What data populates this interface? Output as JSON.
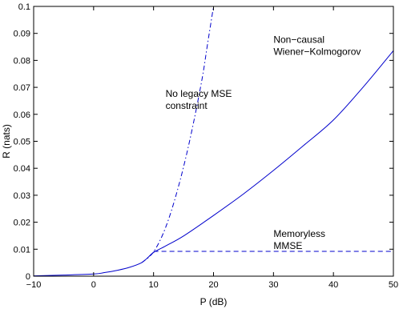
{
  "chart_data": {
    "type": "line",
    "title": "",
    "xlabel": "P (dB)",
    "ylabel": "R (nats)",
    "xlim": [
      -10,
      50
    ],
    "ylim": [
      0,
      0.1
    ],
    "xticks": [
      "−10",
      "0",
      "10",
      "20",
      "30",
      "40",
      "50"
    ],
    "yticks": [
      "0",
      "0.01",
      "0.02",
      "0.03",
      "0.04",
      "0.05",
      "0.06",
      "0.07",
      "0.08",
      "0.09",
      "0.1"
    ],
    "grid": false,
    "legend": "none",
    "series": [
      {
        "style": "solid",
        "color": "#0000cc",
        "x": [
          -10,
          -5,
          0,
          2,
          4,
          6,
          8,
          9,
          10,
          12,
          15,
          20,
          25,
          30,
          35,
          40,
          45,
          50
        ],
        "y": [
          0.0001,
          0.0004,
          0.0008,
          0.0014,
          0.0022,
          0.0033,
          0.005,
          0.0068,
          0.0088,
          0.0112,
          0.0149,
          0.0225,
          0.0305,
          0.0392,
          0.0484,
          0.0579,
          0.0702,
          0.0836
        ]
      },
      {
        "style": "dashdot",
        "color": "#0000cc",
        "x": [
          8,
          10,
          12,
          14,
          16,
          18,
          19,
          20
        ],
        "y": [
          0.005,
          0.009,
          0.018,
          0.032,
          0.05,
          0.072,
          0.086,
          0.1
        ]
      },
      {
        "style": "dashed",
        "color": "#0000cc",
        "x": [
          10,
          50
        ],
        "y": [
          0.0092,
          0.0092
        ]
      }
    ],
    "annotations": [
      {
        "lines": [
          "Non−causal",
          "Wiener−Kolmogorov"
        ],
        "x": 30,
        "y": 0.0865
      },
      {
        "lines": [
          "No legacy MSE",
          "constraint"
        ],
        "x": 12,
        "y": 0.0665
      },
      {
        "lines": [
          "Memoryless",
          "MMSE"
        ],
        "x": 30,
        "y": 0.0145
      }
    ]
  }
}
